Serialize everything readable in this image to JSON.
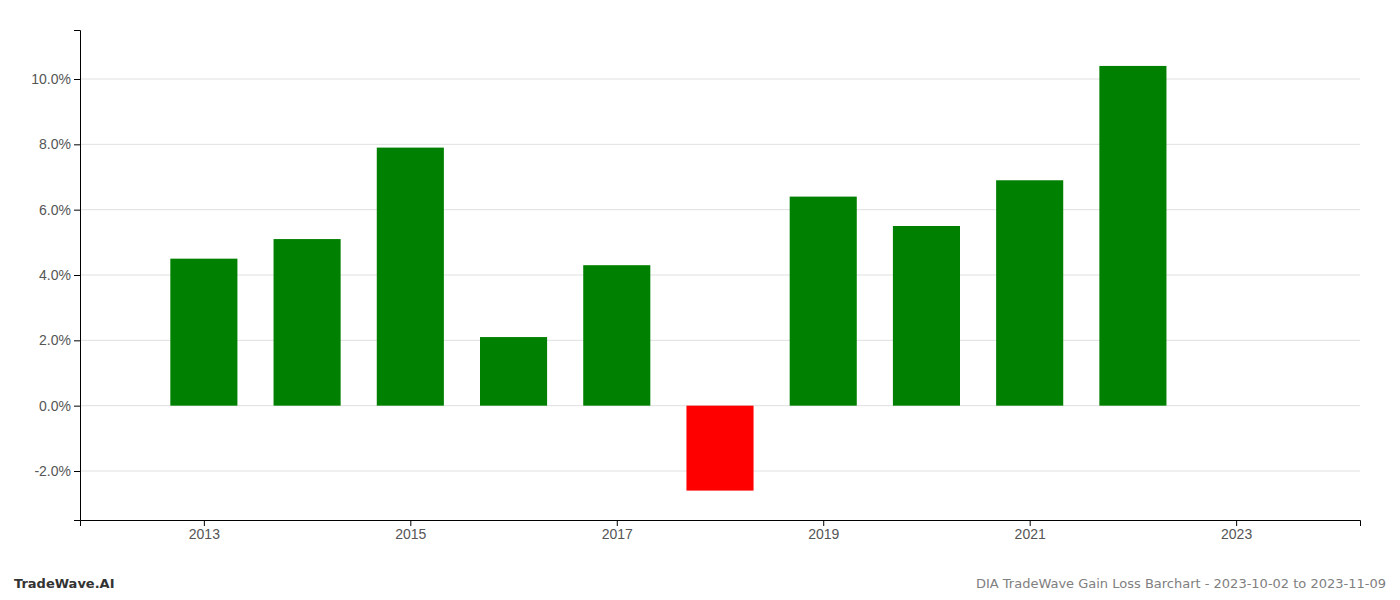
{
  "chart_data": {
    "type": "bar",
    "x": [
      2013,
      2014,
      2015,
      2016,
      2017,
      2018,
      2019,
      2020,
      2021,
      2022
    ],
    "values": [
      0.045,
      0.051,
      0.079,
      0.021,
      0.043,
      -0.026,
      0.064,
      0.055,
      0.069,
      0.104
    ],
    "colors": [
      "#008000",
      "#008000",
      "#008000",
      "#008000",
      "#008000",
      "#ff0000",
      "#008000",
      "#008000",
      "#008000",
      "#008000"
    ],
    "xlim": [
      2011.8,
      2024.2
    ],
    "xticks": [
      2013,
      2015,
      2017,
      2019,
      2021,
      2023
    ],
    "ylim": [
      -0.035,
      0.115
    ],
    "yticks": [
      {
        "value": -0.02,
        "label": "-2.0%"
      },
      {
        "value": 0.0,
        "label": "0.0%"
      },
      {
        "value": 0.02,
        "label": "2.0%"
      },
      {
        "value": 0.04,
        "label": "4.0%"
      },
      {
        "value": 0.06,
        "label": "6.0%"
      },
      {
        "value": 0.08,
        "label": "8.0%"
      },
      {
        "value": 0.1,
        "label": "10.0%"
      }
    ],
    "grid": true,
    "annotations": [
      "TradeWave.AI",
      "DIA TradeWave Gain Loss Barchart - 2023-10-02 to 2023-11-09"
    ]
  }
}
